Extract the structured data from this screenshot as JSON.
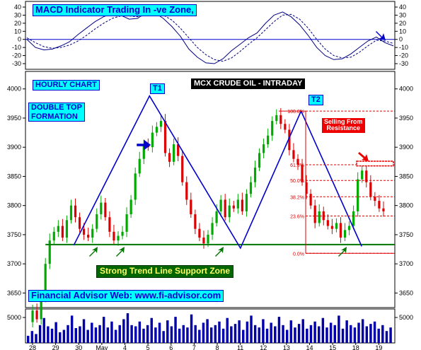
{
  "labels": {
    "macd_title": "MACD Indicator Trading In -ve Zone,",
    "hourly": "HOURLY CHART",
    "double_top_1": "DOUBLE TOP",
    "double_top_2": "FORMATION",
    "instrument": "MCX CRUDE OIL - INTRADAY",
    "t1": "T1",
    "t2": "T2",
    "selling_1": "Selling From",
    "selling_2": "Resistance",
    "support_zone": "Strong Trend Line Support Zone",
    "website": "Financial Advisor Web: www.fi-advisor.com"
  },
  "colors": {
    "price_up": "#00aa00",
    "price_down": "#dd0000",
    "pattern_line": "#0000cc",
    "support_line": "#007700",
    "fib_line": "#dd0000",
    "volume": "#0000aa",
    "macd": "#000080"
  },
  "chart_data": {
    "type": "line",
    "x_tick_labels": [
      "28",
      "29",
      "30",
      "May",
      "4",
      "5",
      "6",
      "7",
      "8",
      "11",
      "12",
      "13",
      "14",
      "15",
      "18",
      "19"
    ],
    "macd_panel": {
      "yticks": [
        40,
        30,
        20,
        10,
        0,
        -10,
        -20,
        -30
      ],
      "ylim": [
        -37,
        47
      ],
      "zero_line": 0,
      "series": [
        {
          "style": "solid",
          "values": [
            0,
            -10,
            -13,
            -12,
            -8,
            -3,
            6,
            14,
            22,
            28,
            32,
            30,
            25,
            26,
            34,
            33,
            26,
            16,
            4,
            -12,
            -22,
            -29,
            -30,
            -24,
            -14,
            -6,
            2,
            8,
            20,
            30,
            34,
            28,
            18,
            5,
            -10,
            -20,
            -25,
            -24,
            -18,
            -10,
            -2,
            3,
            -4,
            -8
          ]
        },
        {
          "style": "dashed",
          "values": [
            2,
            -4,
            -9,
            -11,
            -10,
            -7,
            -2,
            5,
            13,
            20,
            26,
            29,
            29,
            28,
            30,
            32,
            30,
            24,
            14,
            2,
            -10,
            -19,
            -25,
            -27,
            -23,
            -15,
            -6,
            2,
            12,
            22,
            30,
            31,
            25,
            14,
            0,
            -12,
            -20,
            -23,
            -22,
            -16,
            -8,
            -1,
            -2,
            -5
          ]
        }
      ]
    },
    "price_panel": {
      "yticks": [
        4000,
        3950,
        3900,
        3850,
        3800,
        3750,
        3700,
        3650
      ],
      "ylim": [
        3625,
        4030
      ],
      "close_path": [
        3600,
        3620,
        3605,
        3640,
        3700,
        3740,
        3755,
        3765,
        3745,
        3775,
        3800,
        3780,
        3760,
        3750,
        3745,
        3760,
        3785,
        3805,
        3780,
        3755,
        3740,
        3748,
        3755,
        3785,
        3810,
        3855,
        3880,
        3905,
        3900,
        3925,
        3935,
        3945,
        3890,
        3875,
        3905,
        3885,
        3840,
        3810,
        3785,
        3760,
        3745,
        3735,
        3750,
        3770,
        3790,
        3810,
        3780,
        3800,
        3795,
        3810,
        3790,
        3820,
        3840,
        3865,
        3890,
        3905,
        3920,
        3945,
        3955,
        3940,
        3930,
        3895,
        3880,
        3870,
        3840,
        3820,
        3800,
        3770,
        3790,
        3775,
        3765,
        3760,
        3770,
        3745,
        3758,
        3765,
        3790,
        3845,
        3860,
        3840,
        3815,
        3808,
        3795,
        3790
      ],
      "double_top_pattern": [
        [
          3,
          3732
        ],
        [
          8,
          3988
        ],
        [
          14,
          3727
        ],
        [
          18,
          3962
        ],
        [
          22,
          3730
        ]
      ],
      "support_line": {
        "value": 3733,
        "x_start": 3,
        "x_end": 24
      },
      "fibonacci": [
        {
          "label": "100.0%",
          "value": 3962
        },
        {
          "label": "61.8%",
          "value": 3870
        },
        {
          "label": "50.0%",
          "value": 3843
        },
        {
          "label": "38.2%",
          "value": 3815
        },
        {
          "label": "23.6%",
          "value": 3782
        },
        {
          "label": "0.0%",
          "value": 3718
        }
      ],
      "resistance_box": {
        "low": 3868,
        "high": 3876
      }
    },
    "volume_panel": {
      "yticks": [
        5000
      ],
      "values": [
        12,
        20,
        15,
        30,
        42,
        28,
        24,
        35,
        18,
        22,
        30,
        46,
        25,
        28,
        40,
        22,
        34,
        26,
        30,
        44,
        26,
        36,
        22,
        30,
        40,
        50,
        30,
        28,
        36,
        24,
        30,
        42,
        26,
        34,
        20,
        38,
        28,
        44,
        24,
        30,
        26,
        48,
        30,
        22,
        34,
        40,
        26,
        30,
        36,
        24,
        42,
        28,
        32,
        38,
        22,
        36,
        46,
        30,
        26,
        40,
        24,
        34,
        28,
        44,
        30,
        22,
        38,
        26,
        32,
        40,
        24,
        30,
        36,
        28,
        42,
        26,
        34,
        30,
        46,
        24,
        38,
        30,
        26,
        34,
        40,
        28,
        32,
        36,
        24,
        30,
        20,
        26
      ]
    }
  }
}
